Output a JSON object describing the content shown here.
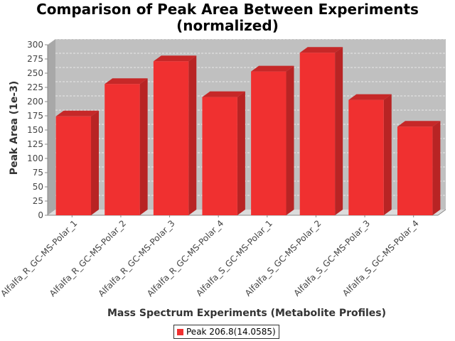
{
  "chart_data": {
    "type": "bar",
    "title_line1": "Comparison of Peak Area Between Experiments",
    "title_line2": "(normalized)",
    "xlabel": "Mass Spectrum Experiments (Metabolite Profiles)",
    "ylabel": "Peak Area (1e-3)",
    "ylim": [
      0,
      300
    ],
    "yticks": [
      0,
      25,
      50,
      75,
      100,
      125,
      150,
      175,
      200,
      225,
      250,
      275,
      300
    ],
    "categories": [
      "Alfalfa_R_GC-MS-Polar_1",
      "Alfalfa_R_GC-MS-Polar_2",
      "Alfalfa_R_GC-MS-Polar_3",
      "Alfalfa_R_GC-MS-Polar_4",
      "Alfalfa_S_GC-MS-Polar_1",
      "Alfalfa_S_GC-MS-Polar_2",
      "Alfalfa_S_GC-MS-Polar_3",
      "Alfalfa_S_GC-MS-Polar_4"
    ],
    "series": [
      {
        "name": "Peak 206.8(14.0585)",
        "values": [
          174,
          231,
          271,
          208,
          253,
          286,
          203,
          156
        ]
      }
    ],
    "grid": true,
    "legend_position": "bottom",
    "colors": {
      "bar_front": "#f03030",
      "bar_side": "#b82424",
      "bar_top": "#c62828",
      "plot_bg": "#c0c0c0",
      "plot_floor": "#dcdcdc",
      "plot_wall": "#a8a8a8"
    }
  }
}
